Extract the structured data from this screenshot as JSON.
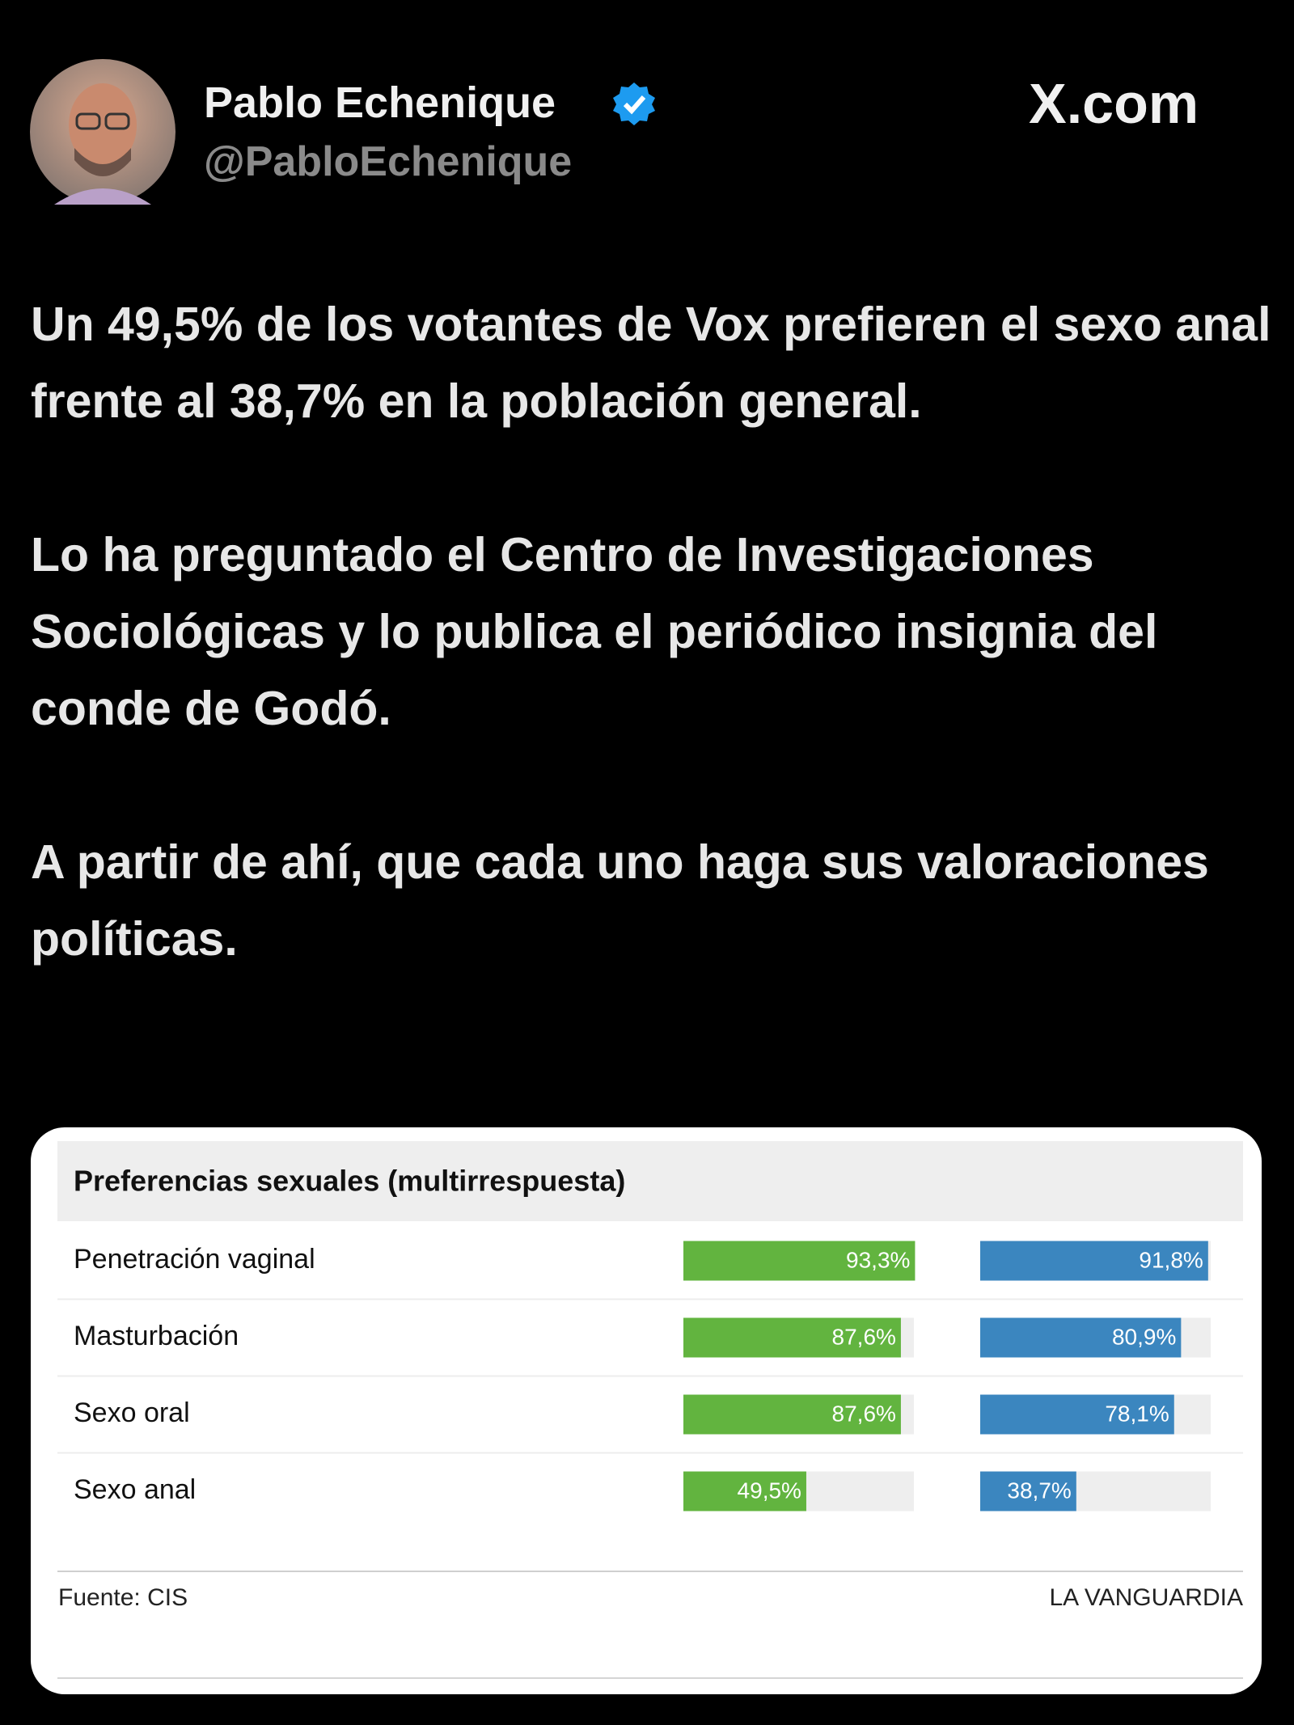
{
  "author": {
    "name": "Pablo Echenique",
    "handle": "@PabloEchenique"
  },
  "site": "X.com",
  "tweet": {
    "paragraphs": [
      "Un 49,5% de los votantes de Vox prefieren el sexo anal frente al 38,7% en la población general.",
      "Lo ha preguntado el Centro de Investigaciones Sociológicas y lo publica el periódico insignia del conde de Godó.",
      "A partir de ahí, que cada uno haga sus valoraciones políticas."
    ]
  },
  "chart_data": {
    "type": "bar",
    "orientation": "horizontal",
    "title": "Preferencias sexuales (multirrespuesta)",
    "categories": [
      "Penetración vaginal",
      "Masturbación",
      "Sexo oral",
      "Sexo anal"
    ],
    "series": [
      {
        "color": "#62b43f",
        "values": [
          93.3,
          87.6,
          87.6,
          49.5
        ],
        "value_labels": [
          "93,3%",
          "87,6%",
          "87,6%",
          "49,5%"
        ]
      },
      {
        "color": "#3b86bf",
        "values": [
          91.8,
          80.9,
          78.1,
          38.7
        ],
        "value_labels": [
          "91,8%",
          "80,9%",
          "78,1%",
          "38,7%"
        ]
      }
    ],
    "xlim": [
      0,
      100
    ],
    "source": "Fuente: CIS",
    "publisher": "LA VANGUARDIA"
  }
}
